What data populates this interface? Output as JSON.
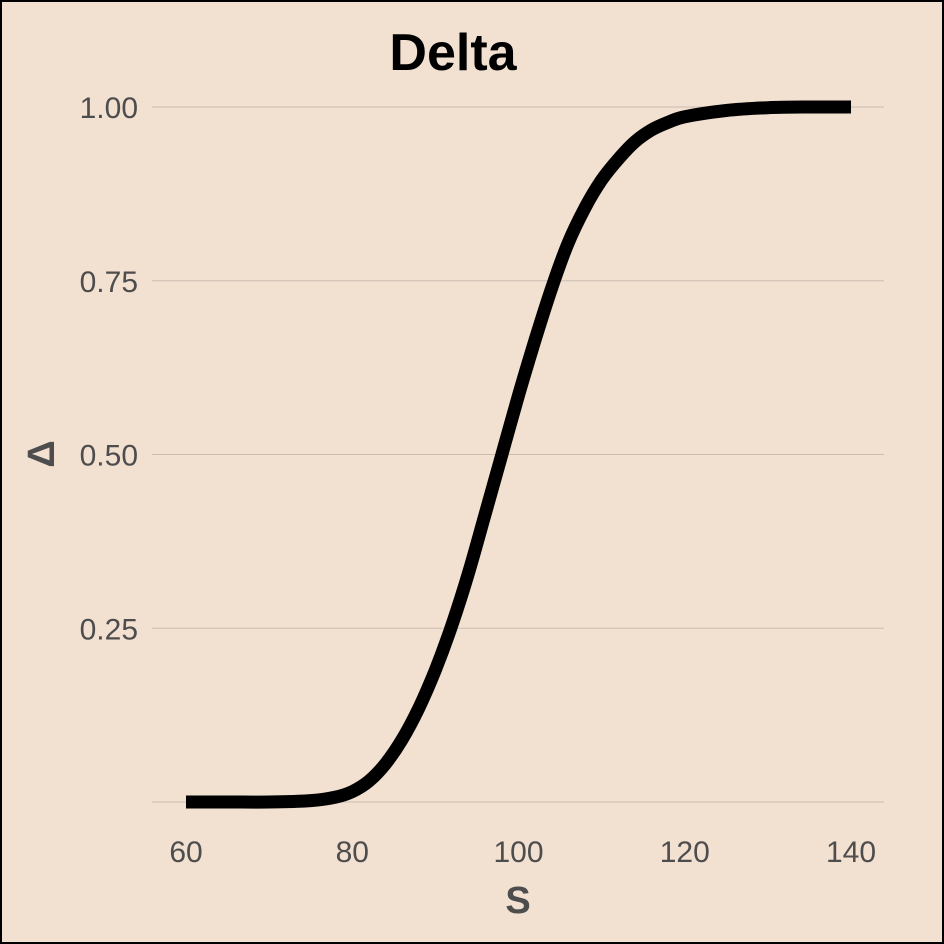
{
  "chart_data": {
    "type": "line",
    "title": "Delta",
    "xlabel": "S",
    "ylabel": "Δ",
    "xlim": [
      60,
      140
    ],
    "ylim": [
      0,
      1
    ],
    "x_ticks": [
      "60",
      "80",
      "100",
      "120",
      "140"
    ],
    "y_ticks": [
      "0.25",
      "0.50",
      "0.75",
      "1.00"
    ],
    "grid": "horizontal",
    "background": "#f2e0d1",
    "line_color": "#000000",
    "series": [
      {
        "x": [
          60,
          65,
          70,
          75,
          78,
          80,
          82,
          84,
          86,
          88,
          90,
          92,
          94,
          96,
          98,
          100,
          102,
          104,
          106,
          108,
          110,
          112,
          114,
          116,
          118,
          120,
          125,
          130,
          135,
          140
        ],
        "y": [
          0.0,
          0.0,
          0.0,
          0.002,
          0.007,
          0.015,
          0.03,
          0.055,
          0.09,
          0.135,
          0.19,
          0.255,
          0.33,
          0.415,
          0.5,
          0.585,
          0.665,
          0.74,
          0.805,
          0.855,
          0.895,
          0.925,
          0.95,
          0.967,
          0.978,
          0.986,
          0.995,
          0.999,
          1.0,
          1.0
        ]
      }
    ]
  }
}
